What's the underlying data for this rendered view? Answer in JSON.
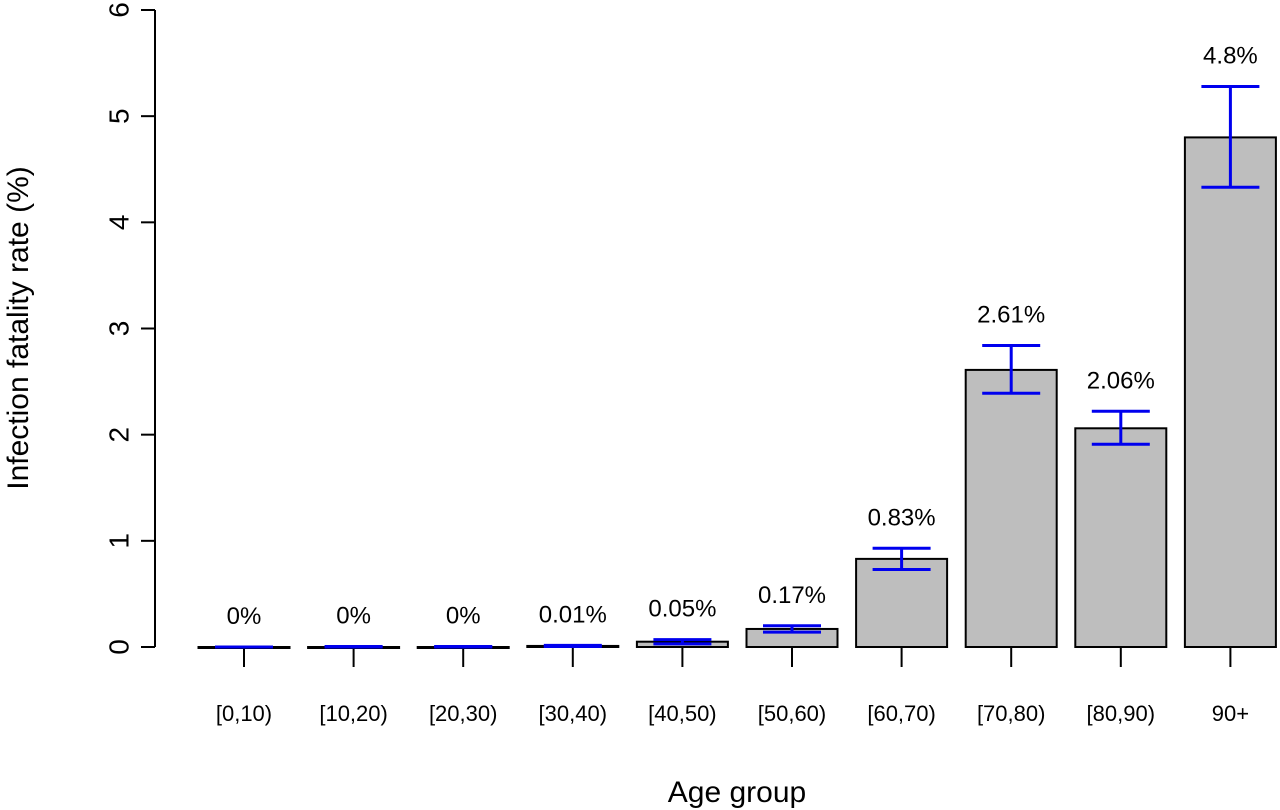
{
  "chart_data": {
    "type": "bar",
    "title": "",
    "xlabel": "Age group",
    "ylabel": "Infection fatality rate (%)",
    "ylim": [
      0,
      6
    ],
    "yticks": [
      "0",
      "1",
      "2",
      "3",
      "4",
      "5",
      "6"
    ],
    "grid": false,
    "categories": [
      "[0,10)",
      "[10,20)",
      "[20,30)",
      "[30,40)",
      "[40,50)",
      "[50,60)",
      "[60,70)",
      "[70,80)",
      "[80,90)",
      "90+"
    ],
    "values": [
      0,
      0,
      0,
      0.01,
      0.05,
      0.17,
      0.83,
      2.61,
      2.06,
      4.8
    ],
    "error_low": [
      0,
      0,
      0,
      0.005,
      0.03,
      0.14,
      0.73,
      2.39,
      1.91,
      4.33
    ],
    "error_high": [
      0,
      0.005,
      0.005,
      0.015,
      0.07,
      0.2,
      0.93,
      2.84,
      2.22,
      5.28
    ],
    "value_labels": [
      "0%",
      "0%",
      "0%",
      "0.01%",
      "0.05%",
      "0.17%",
      "0.83%",
      "2.61%",
      "2.06%",
      "4.8%"
    ],
    "colors": {
      "bar_fill": "#bebebe",
      "bar_stroke": "#000000",
      "error_bar": "#0000ee",
      "axis": "#000000"
    }
  }
}
